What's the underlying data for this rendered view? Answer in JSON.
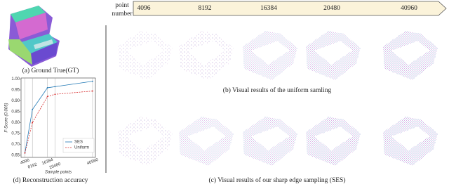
{
  "captions": {
    "gt": "(a) Ground True(GT)",
    "uniform": "(b) Visual results of the uniform samling",
    "ses": "(c) Visual results of our sharp edge sampling (SES)",
    "accuracy": "(d) Reconstruction accuracy"
  },
  "banner": {
    "label_line1": "point",
    "label_line2": "number",
    "labels": [
      "4096",
      "8192",
      "16384",
      "20480",
      "40960"
    ]
  },
  "chart_data": {
    "type": "line",
    "ylabel": "F-Score (0.005)",
    "xlabel": "Sample points",
    "x": [
      4096,
      8192,
      16384,
      20480,
      40960
    ],
    "series": [
      {
        "name": "SES",
        "color": "#1f77b4",
        "dash": false,
        "values": [
          0.66,
          0.86,
          0.96,
          0.965,
          0.99
        ]
      },
      {
        "name": "Uniform",
        "color": "#d62728",
        "dash": true,
        "values": [
          0.66,
          0.8,
          0.92,
          0.93,
          0.945
        ]
      }
    ],
    "xlim": [
      2000,
      42500
    ],
    "xticks": [
      4096,
      8192,
      16384,
      20480,
      40960
    ],
    "ylim": [
      0.64,
      1.005
    ],
    "yticks": [
      {
        "value": 0.65,
        "label": "0.65"
      },
      {
        "value": 0.7,
        "label": "0.70"
      },
      {
        "value": 0.75,
        "label": "0.75"
      },
      {
        "value": 0.8,
        "label": "0.80"
      },
      {
        "value": 0.85,
        "label": "0.85"
      },
      {
        "value": 0.9,
        "label": "0.90"
      },
      {
        "value": 0.95,
        "label": "0.95"
      },
      {
        "value": 1.0,
        "label": "1.00"
      }
    ],
    "grid": true,
    "legend": "lower right"
  }
}
